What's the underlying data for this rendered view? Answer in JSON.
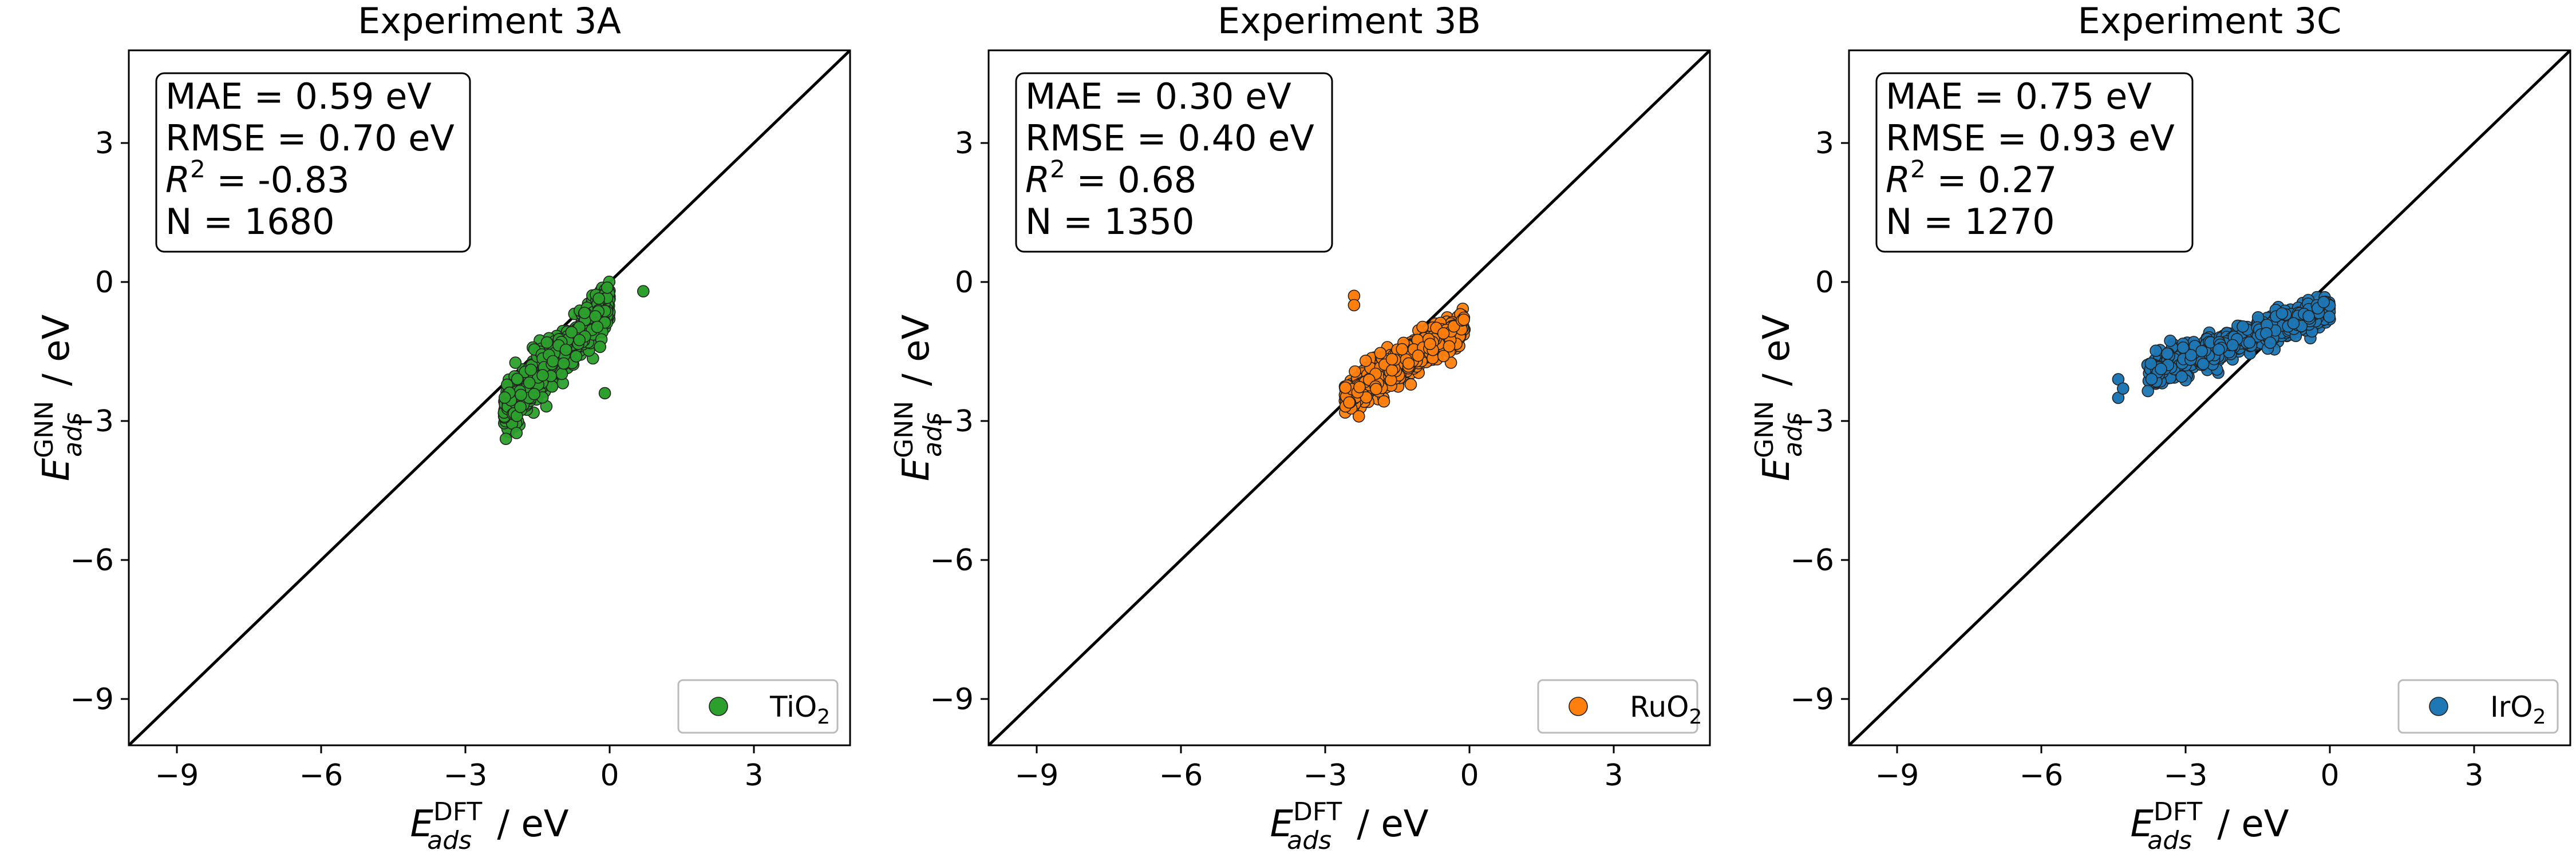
{
  "chart_data": [
    {
      "type": "scatter",
      "title": "Experiment 3A",
      "xlabel": {
        "main": "E",
        "sub": "ads",
        "sup": "DFT",
        "unit": " / eV"
      },
      "ylabel": {
        "main": "E",
        "sub": "ads",
        "sup": "GNN",
        "unit": " / eV"
      },
      "xlim": [
        -10,
        5
      ],
      "ylim": [
        -10,
        5
      ],
      "xticks": [
        -9,
        -6,
        -3,
        0,
        3
      ],
      "yticks": [
        -9,
        -6,
        -3,
        0,
        3
      ],
      "tick_labels": [
        "−9",
        "−6",
        "−3",
        "0",
        "3"
      ],
      "parity_line": true,
      "stats": {
        "mae": "MAE = 0.59 eV",
        "rmse": "RMSE = 0.70 eV",
        "r2_prefix": "R",
        "r2_value": " = -0.83",
        "n": "N = 1680"
      },
      "legend": {
        "label": "TiO",
        "sub": "2",
        "location": "lower-right"
      },
      "color": "#2ca02c",
      "cluster": {
        "n_points": 1680,
        "x_range": [
          -2.2,
          0.0
        ],
        "fit_slope": 1.1,
        "fit_intercept": -0.4,
        "spread": 0.45,
        "outliers": [
          [
            0.7,
            -0.2
          ],
          [
            -0.1,
            -2.4
          ],
          [
            -0.2,
            -1.4
          ]
        ]
      }
    },
    {
      "type": "scatter",
      "title": "Experiment 3B",
      "xlabel": {
        "main": "E",
        "sub": "ads",
        "sup": "DFT",
        "unit": " / eV"
      },
      "ylabel": {
        "main": "E",
        "sub": "ads",
        "sup": "GNN",
        "unit": " / eV"
      },
      "xlim": [
        -10,
        5
      ],
      "ylim": [
        -10,
        5
      ],
      "xticks": [
        -9,
        -6,
        -3,
        0,
        3
      ],
      "yticks": [
        -9,
        -6,
        -3,
        0,
        3
      ],
      "tick_labels": [
        "−9",
        "−6",
        "−3",
        "0",
        "3"
      ],
      "parity_line": true,
      "stats": {
        "mae": "MAE = 0.30 eV",
        "rmse": "RMSE = 0.40 eV",
        "r2_prefix": "R",
        "r2_value": " = 0.68",
        "n": "N = 1350"
      },
      "legend": {
        "label": "RuO",
        "sub": "2",
        "location": "lower-right"
      },
      "color": "#ff7f0e",
      "cluster": {
        "n_points": 1350,
        "x_range": [
          -2.6,
          -0.1
        ],
        "fit_slope": 0.6,
        "fit_intercept": -0.9,
        "spread": 0.35,
        "outliers": [
          [
            -2.4,
            -0.3
          ],
          [
            -2.4,
            -0.5
          ],
          [
            -2.3,
            -2.9
          ],
          [
            -2.5,
            -2.6
          ]
        ]
      }
    },
    {
      "type": "scatter",
      "title": "Experiment 3C",
      "xlabel": {
        "main": "E",
        "sub": "ads",
        "sup": "DFT",
        "unit": " / eV"
      },
      "ylabel": {
        "main": "E",
        "sub": "ads",
        "sup": "GNN",
        "unit": " / eV"
      },
      "xlim": [
        -10,
        5
      ],
      "ylim": [
        -10,
        5
      ],
      "xticks": [
        -9,
        -6,
        -3,
        0,
        3
      ],
      "yticks": [
        -9,
        -6,
        -3,
        0,
        3
      ],
      "tick_labels": [
        "−9",
        "−6",
        "−3",
        "0",
        "3"
      ],
      "parity_line": true,
      "stats": {
        "mae": "MAE = 0.75 eV",
        "rmse": "RMSE = 0.93 eV",
        "r2_prefix": "R",
        "r2_value": " = 0.27",
        "n": "N = 1270"
      },
      "legend": {
        "label": "IrO",
        "sub": "2",
        "location": "lower-right"
      },
      "color": "#1f77b4",
      "cluster": {
        "n_points": 1270,
        "x_range": [
          -3.8,
          0.0
        ],
        "fit_slope": 0.35,
        "fit_intercept": -0.6,
        "spread": 0.3,
        "outliers": [
          [
            -4.4,
            -2.1
          ],
          [
            -4.4,
            -2.5
          ],
          [
            -4.3,
            -2.3
          ]
        ]
      }
    }
  ]
}
